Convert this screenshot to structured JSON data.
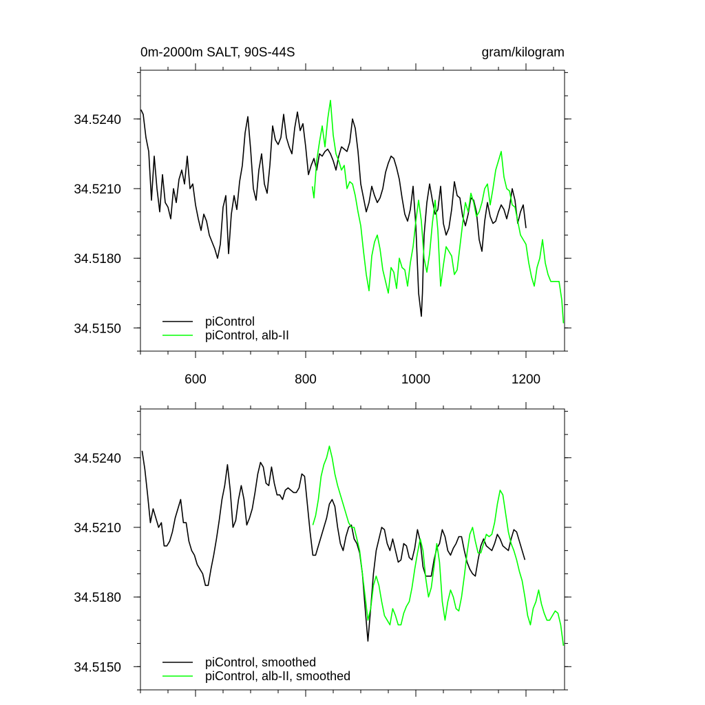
{
  "title_left": "0m-2000m SALT, 90S-44S",
  "title_right": "gram/kilogram",
  "colors": {
    "black_series": "#000000",
    "green_series": "#00ff00"
  },
  "chart_data": [
    {
      "type": "line",
      "title": "0m-2000m SALT, 90S-44S",
      "units": "gram/kilogram",
      "xlim": [
        500,
        1270
      ],
      "ylim": [
        34.514,
        34.5261
      ],
      "x_ticks": [
        600,
        800,
        1000,
        1200
      ],
      "x_tick_labels": [
        "600",
        "800",
        "1000",
        "1200"
      ],
      "y_ticks": [
        34.515,
        34.518,
        34.521,
        34.524
      ],
      "y_tick_labels": [
        "34.5150",
        "34.5180",
        "34.5210",
        "34.5240"
      ],
      "legend": "bottom-left",
      "series": [
        {
          "name": "piControl",
          "color": "#000000",
          "x": [
            501,
            505,
            510,
            515,
            520,
            525,
            530,
            535,
            540,
            545,
            550,
            555,
            560,
            565,
            570,
            575,
            580,
            585,
            590,
            595,
            600,
            605,
            610,
            615,
            620,
            625,
            630,
            635,
            640,
            645,
            650,
            655,
            660,
            665,
            670,
            675,
            680,
            685,
            690,
            695,
            700,
            705,
            710,
            715,
            720,
            725,
            730,
            735,
            740,
            745,
            750,
            755,
            760,
            765,
            770,
            775,
            780,
            785,
            790,
            795,
            800,
            805,
            810,
            815,
            820,
            825,
            830,
            835,
            840,
            845,
            850,
            855,
            860,
            865,
            870,
            875,
            880,
            885,
            890,
            895,
            900,
            905,
            910,
            915,
            920,
            925,
            930,
            935,
            940,
            945,
            950,
            955,
            960,
            965,
            970,
            975,
            980,
            985,
            990,
            995,
            1000,
            1005,
            1010,
            1012,
            1015,
            1020,
            1025,
            1030,
            1035,
            1040,
            1045,
            1050,
            1055,
            1060,
            1065,
            1070,
            1075,
            1080,
            1085,
            1090,
            1095,
            1100,
            1105,
            1110,
            1115,
            1120,
            1125,
            1130,
            1135,
            1140,
            1145,
            1150,
            1155,
            1160,
            1165,
            1170,
            1175,
            1180,
            1185,
            1190,
            1195,
            1200
          ],
          "y": [
            34.5244,
            34.5242,
            34.5232,
            34.5226,
            34.5205,
            34.5224,
            34.521,
            34.52,
            34.5216,
            34.5204,
            34.5202,
            34.5197,
            34.521,
            34.5204,
            34.5214,
            34.5218,
            34.5212,
            34.5224,
            34.521,
            34.5212,
            34.5203,
            34.5197,
            34.5192,
            34.5199,
            34.5196,
            34.519,
            34.5187,
            34.5184,
            34.518,
            34.5186,
            34.5202,
            34.5207,
            34.5182,
            34.5199,
            34.5207,
            34.5201,
            34.5213,
            34.522,
            34.5234,
            34.5241,
            34.5227,
            34.521,
            34.5205,
            34.5218,
            34.5225,
            34.5212,
            34.5208,
            34.522,
            34.5237,
            34.5231,
            34.5229,
            34.5232,
            34.5242,
            34.5232,
            34.5228,
            34.5225,
            34.5236,
            34.5243,
            34.5235,
            34.5238,
            34.5228,
            34.5216,
            34.522,
            34.5223,
            34.5218,
            34.5225,
            34.5224,
            34.5226,
            34.5227,
            34.5225,
            34.5222,
            34.5218,
            34.5224,
            34.5228,
            34.5227,
            34.5226,
            34.523,
            34.524,
            34.5236,
            34.5226,
            34.5212,
            34.5206,
            34.52,
            34.5204,
            34.5211,
            34.5207,
            34.5204,
            34.5206,
            34.521,
            34.5217,
            34.5221,
            34.5224,
            34.5223,
            34.5219,
            34.5214,
            34.5206,
            34.5199,
            34.5196,
            34.5201,
            34.5211,
            34.5194,
            34.5165,
            34.5155,
            34.5165,
            34.519,
            34.5204,
            34.5212,
            34.5205,
            34.5199,
            34.5201,
            34.5211,
            34.5195,
            34.519,
            34.5193,
            34.5201,
            34.5213,
            34.5207,
            34.5206,
            34.5198,
            34.5194,
            34.5199,
            34.5206,
            34.5205,
            34.52,
            34.5188,
            34.5183,
            34.5196,
            34.5204,
            34.5198,
            34.5195,
            34.5196,
            34.52,
            34.5203,
            34.5201,
            34.5197,
            34.5202,
            34.521,
            34.5205,
            34.5195,
            34.52,
            34.5203,
            34.5193
          ]
        },
        {
          "name": "piControl, alb-II",
          "color": "#00ff00",
          "x": [
            812,
            815,
            820,
            825,
            830,
            835,
            840,
            845,
            850,
            855,
            860,
            865,
            870,
            875,
            880,
            885,
            890,
            895,
            900,
            905,
            910,
            915,
            920,
            925,
            930,
            935,
            940,
            945,
            950,
            955,
            960,
            965,
            970,
            975,
            980,
            985,
            990,
            995,
            1000,
            1005,
            1010,
            1015,
            1020,
            1025,
            1030,
            1035,
            1040,
            1045,
            1050,
            1055,
            1060,
            1065,
            1070,
            1075,
            1080,
            1085,
            1090,
            1095,
            1100,
            1105,
            1110,
            1115,
            1120,
            1125,
            1130,
            1135,
            1140,
            1145,
            1150,
            1155,
            1160,
            1165,
            1170,
            1175,
            1180,
            1185,
            1190,
            1195,
            1200,
            1205,
            1210,
            1215,
            1220,
            1225,
            1230,
            1235,
            1240,
            1245,
            1250,
            1255,
            1260,
            1265,
            1268
          ],
          "y": [
            34.5211,
            34.5206,
            34.5222,
            34.523,
            34.5237,
            34.5228,
            34.524,
            34.5248,
            34.5233,
            34.5225,
            34.5222,
            34.5218,
            34.522,
            34.521,
            34.5213,
            34.5212,
            34.5207,
            34.52,
            34.5194,
            34.5183,
            34.5173,
            34.5166,
            34.5181,
            34.5187,
            34.519,
            34.5184,
            34.5175,
            34.517,
            34.5165,
            34.5176,
            34.5174,
            34.5167,
            34.518,
            34.5176,
            34.5175,
            34.5168,
            34.5178,
            34.5185,
            34.5196,
            34.5205,
            34.5196,
            34.518,
            34.5174,
            34.5182,
            34.5195,
            34.5205,
            34.5192,
            34.5168,
            34.5177,
            34.5185,
            34.5183,
            34.5181,
            34.5173,
            34.5175,
            34.5185,
            34.5195,
            34.5204,
            34.52,
            34.5208,
            34.5204,
            34.5198,
            34.52,
            34.5204,
            34.521,
            34.5212,
            34.5203,
            34.521,
            34.5218,
            34.5222,
            34.5226,
            34.5215,
            34.521,
            34.5209,
            34.5203,
            34.5202,
            34.5196,
            34.519,
            34.5188,
            34.5186,
            34.5178,
            34.5172,
            34.5168,
            34.5176,
            34.518,
            34.5188,
            34.5178,
            34.5173,
            34.517,
            34.517,
            34.517,
            34.517,
            34.5162,
            34.5152
          ]
        }
      ]
    },
    {
      "type": "line",
      "xlim": [
        500,
        1270
      ],
      "ylim": [
        34.514,
        34.5261
      ],
      "x_ticks": [
        600,
        800,
        1000,
        1200
      ],
      "y_ticks": [
        34.515,
        34.518,
        34.521,
        34.524
      ],
      "y_tick_labels": [
        "34.5150",
        "34.5180",
        "34.5210",
        "34.5240"
      ],
      "legend": "bottom-left",
      "series": [
        {
          "name": "piControl, smoothed",
          "color": "#000000",
          "x": [
            503,
            508,
            513,
            518,
            523,
            528,
            533,
            538,
            543,
            548,
            553,
            558,
            563,
            568,
            573,
            578,
            583,
            588,
            593,
            598,
            603,
            608,
            613,
            618,
            623,
            628,
            633,
            638,
            643,
            648,
            653,
            658,
            663,
            668,
            673,
            678,
            683,
            688,
            693,
            698,
            703,
            708,
            713,
            718,
            723,
            728,
            733,
            738,
            743,
            748,
            753,
            758,
            763,
            768,
            773,
            778,
            783,
            788,
            793,
            798,
            803,
            808,
            813,
            818,
            823,
            828,
            833,
            838,
            843,
            848,
            853,
            858,
            863,
            868,
            873,
            878,
            883,
            888,
            893,
            898,
            903,
            908,
            913,
            918,
            923,
            928,
            933,
            938,
            943,
            948,
            953,
            958,
            963,
            968,
            973,
            978,
            983,
            988,
            993,
            998,
            1003,
            1008,
            1013,
            1018,
            1023,
            1028,
            1033,
            1038,
            1043,
            1048,
            1053,
            1058,
            1063,
            1068,
            1073,
            1078,
            1083,
            1088,
            1093,
            1098,
            1103,
            1108,
            1113,
            1118,
            1123,
            1128,
            1133,
            1138,
            1143,
            1148,
            1153,
            1158,
            1163,
            1168,
            1173,
            1178,
            1183,
            1188,
            1193,
            1198
          ],
          "y": [
            34.5243,
            34.5235,
            34.5224,
            34.5212,
            34.5218,
            34.5214,
            34.521,
            34.5212,
            34.5202,
            34.5202,
            34.5204,
            34.5208,
            34.5214,
            34.5218,
            34.5222,
            34.5212,
            34.5212,
            34.5204,
            34.52,
            34.5198,
            34.5194,
            34.5192,
            34.519,
            34.5185,
            34.5185,
            34.5192,
            34.5198,
            34.5205,
            34.5213,
            34.5222,
            34.5228,
            34.5237,
            34.5226,
            34.521,
            34.5213,
            34.5222,
            34.5228,
            34.5222,
            34.5211,
            34.5214,
            34.5218,
            34.5225,
            34.5233,
            34.5238,
            34.5236,
            34.5229,
            34.5228,
            34.5236,
            34.5229,
            34.5224,
            34.5224,
            34.5222,
            34.5226,
            34.5227,
            34.5226,
            34.5225,
            34.5225,
            34.5227,
            34.5233,
            34.5232,
            34.522,
            34.5208,
            34.5198,
            34.5198,
            34.5202,
            34.5206,
            34.521,
            34.5214,
            34.522,
            34.5222,
            34.5219,
            34.521,
            34.5203,
            34.52,
            34.5206,
            34.521,
            34.5211,
            34.5205,
            34.5203,
            34.5199,
            34.519,
            34.5175,
            34.5161,
            34.5175,
            34.519,
            34.52,
            34.5205,
            34.521,
            34.5209,
            34.5203,
            34.52,
            34.5205,
            34.52,
            34.5195,
            34.5196,
            34.5203,
            34.5202,
            34.5197,
            34.5196,
            34.5201,
            34.5209,
            34.5204,
            34.5193,
            34.5189,
            34.5189,
            34.5189,
            34.5196,
            34.5201,
            34.5203,
            34.5209,
            34.5206,
            34.52,
            34.5198,
            34.5201,
            34.5203,
            34.5206,
            34.5206,
            34.52,
            34.5195,
            34.5192,
            34.519,
            34.5189,
            34.5196,
            34.5202,
            34.5205,
            34.5202,
            34.5201,
            34.52,
            34.5203,
            34.5207,
            34.5205,
            34.5202,
            34.5201,
            34.52,
            34.5205,
            34.5209,
            34.5208,
            34.5204,
            34.52,
            34.5196
          ]
        },
        {
          "name": "piControl, alb-II, smoothed",
          "color": "#00ff00",
          "x": [
            813,
            818,
            823,
            828,
            833,
            838,
            843,
            848,
            853,
            858,
            863,
            868,
            873,
            878,
            883,
            888,
            893,
            898,
            903,
            908,
            913,
            918,
            923,
            928,
            933,
            938,
            943,
            948,
            953,
            958,
            963,
            968,
            973,
            978,
            983,
            988,
            993,
            998,
            1003,
            1008,
            1013,
            1018,
            1023,
            1028,
            1033,
            1038,
            1043,
            1048,
            1053,
            1058,
            1063,
            1068,
            1073,
            1078,
            1083,
            1088,
            1093,
            1098,
            1103,
            1108,
            1113,
            1118,
            1123,
            1128,
            1133,
            1138,
            1143,
            1148,
            1153,
            1158,
            1163,
            1168,
            1173,
            1178,
            1183,
            1188,
            1193,
            1198,
            1203,
            1208,
            1213,
            1218,
            1223,
            1228,
            1233,
            1238,
            1243,
            1248,
            1253,
            1258,
            1263,
            1268
          ],
          "y": [
            34.5211,
            34.5215,
            34.5222,
            34.5232,
            34.5237,
            34.524,
            34.5245,
            34.524,
            34.5233,
            34.5228,
            34.5224,
            34.522,
            34.5216,
            34.5212,
            34.521,
            34.521,
            34.5205,
            34.52,
            34.519,
            34.518,
            34.517,
            34.5175,
            34.5185,
            34.5189,
            34.5185,
            34.5178,
            34.5172,
            34.517,
            34.5168,
            34.5175,
            34.5172,
            34.5168,
            34.5168,
            34.5173,
            34.5176,
            34.5178,
            34.5184,
            34.5192,
            34.5199,
            34.5205,
            34.52,
            34.5188,
            34.518,
            34.5184,
            34.5193,
            34.5203,
            34.5195,
            34.5178,
            34.517,
            34.5178,
            34.5183,
            34.518,
            34.5175,
            34.5174,
            34.518,
            34.5189,
            34.5199,
            34.5207,
            34.521,
            34.5204,
            34.5199,
            34.5199,
            34.5203,
            34.5207,
            34.5206,
            34.5207,
            34.5212,
            34.522,
            34.5226,
            34.5224,
            34.5216,
            34.5208,
            34.5203,
            34.52,
            34.5196,
            34.5191,
            34.5187,
            34.518,
            34.5172,
            34.5168,
            34.5175,
            34.5178,
            34.5183,
            34.5177,
            34.5173,
            34.517,
            34.517,
            34.5172,
            34.5174,
            34.5173,
            34.5168,
            34.5159
          ]
        }
      ]
    }
  ]
}
